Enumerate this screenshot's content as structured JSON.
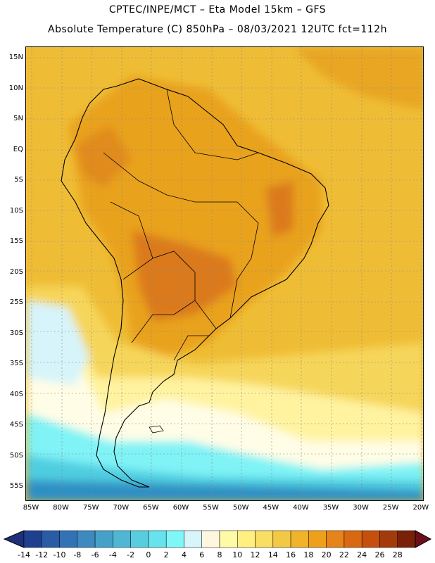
{
  "header": {
    "line1": "CPTEC/INPE/MCT –  Eta Model 15km – GFS",
    "line2": "Absolute Temperature (C) 850hPa – 08/03/2021 12UTC fct=112h"
  },
  "lat_labels": [
    "15N",
    "10N",
    "5N",
    "EQ",
    "5S",
    "10S",
    "15S",
    "20S",
    "25S",
    "30S",
    "35S",
    "40S",
    "45S",
    "50S",
    "55S"
  ],
  "lon_labels": [
    "85W",
    "80W",
    "75W",
    "70W",
    "65W",
    "60W",
    "55W",
    "50W",
    "45W",
    "40W",
    "35W",
    "30W",
    "25W",
    "20W"
  ],
  "colorbar": {
    "labels": [
      "-14",
      "-12",
      "-10",
      "-8",
      "-6",
      "-4",
      "-2",
      "0",
      "2",
      "4",
      "6",
      "8",
      "10",
      "12",
      "14",
      "16",
      "18",
      "20",
      "22",
      "24",
      "26",
      "28"
    ],
    "colors": [
      "#1f3f8f",
      "#2a5ca6",
      "#3373b5",
      "#3d8ac0",
      "#46a1c9",
      "#4fb7d4",
      "#59cde0",
      "#66e3ed",
      "#7ff7f8",
      "#d7f5fb",
      "#fff6e0",
      "#fffaa8",
      "#fff07f",
      "#f9de64",
      "#f3c844",
      "#f0b32a",
      "#eea01a",
      "#e6831a",
      "#d96812",
      "#c5500d",
      "#a33a0a",
      "#7a2008"
    ],
    "arrow_low": "#1f2f7a",
    "arrow_high": "#6b0f1a"
  },
  "colors": {
    "ocean_warm": "#efbd35",
    "tropical_land": "#e9a21d",
    "hot_core": "#db7a1a",
    "subtropical": "#f6d65a",
    "mild": "#fff3a0",
    "cool": "#fffde6",
    "cold": "#d6f4fa",
    "colder": "#7ff3f6",
    "coldest": "#4fcde0",
    "freezing": "#2f8fc4"
  }
}
